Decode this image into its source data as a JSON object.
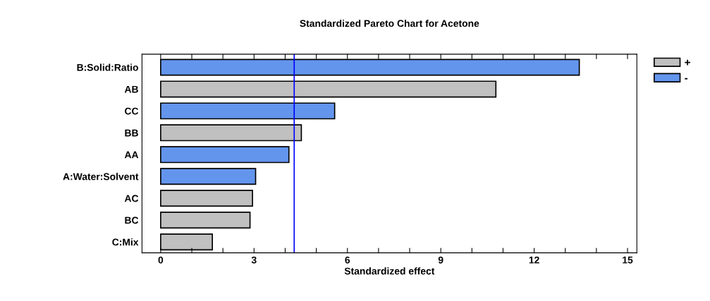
{
  "chart_data": {
    "type": "bar",
    "title": "Standardized Pareto Chart for Acetone",
    "xlabel": "Standardized effect",
    "orientation": "horizontal",
    "categories": [
      "B:Solid:Ratio",
      "AB",
      "CC",
      "BB",
      "AA",
      "A:Water:Solvent",
      "AC",
      "BC",
      "C:Mix"
    ],
    "series": [
      {
        "name": "+",
        "color": "#c0c0c0",
        "values": [
          null,
          10.77,
          null,
          4.52,
          null,
          null,
          2.95,
          2.87,
          1.66
        ]
      },
      {
        "name": "-",
        "color": "#6495ed",
        "values": [
          13.45,
          null,
          5.59,
          null,
          4.12,
          3.05,
          null,
          null,
          null
        ]
      }
    ],
    "xlim": [
      -0.6,
      15.3
    ],
    "xticks": [
      0,
      {
        "value": 1,
        "label": null
      },
      {
        "value": 2,
        "label": null
      },
      3,
      {
        "value": 4,
        "label": null
      },
      {
        "value": 5,
        "label": null
      },
      6,
      {
        "value": 7,
        "label": null
      },
      {
        "value": 8,
        "label": null
      },
      9,
      {
        "value": 10,
        "label": null
      },
      {
        "value": 11,
        "label": null
      },
      12,
      {
        "value": 13,
        "label": null
      },
      {
        "value": 14,
        "label": null
      },
      15
    ],
    "ref_lines": [
      {
        "axis": "x",
        "value": 4.29,
        "color": "#0000ff"
      }
    ],
    "legend": "top right",
    "grid": false
  }
}
